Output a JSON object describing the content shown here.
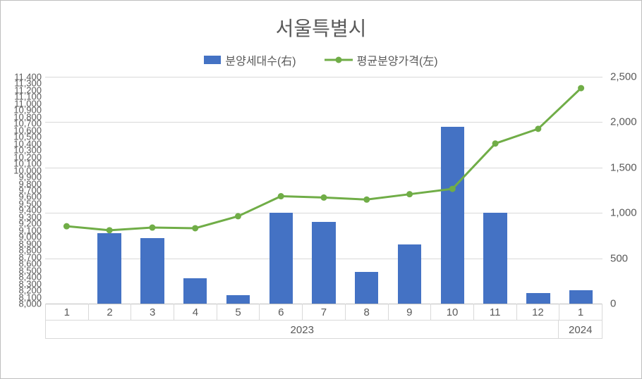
{
  "chart": {
    "title": "서울특별시",
    "title_fontsize": 28,
    "title_color": "#595959",
    "background_color": "#ffffff",
    "grid_color": "#d9d9d9",
    "axis_text_color": "#595959",
    "legend": {
      "items": [
        {
          "label": "분양세대수(右)",
          "type": "bar",
          "color": "#4472c4"
        },
        {
          "label": "평균분양가격(左)",
          "type": "line",
          "color": "#70ad47",
          "marker": "circle"
        }
      ]
    },
    "left_axis": {
      "min": 8000,
      "max": 11400,
      "step": 100,
      "fontsize": 13,
      "format": "comma"
    },
    "right_axis": {
      "min": 0,
      "max": 2500,
      "step": 500,
      "fontsize": 15,
      "format": "comma"
    },
    "x_axis": {
      "months": [
        1,
        2,
        3,
        4,
        5,
        6,
        7,
        8,
        9,
        10,
        11,
        12,
        1
      ],
      "groups": [
        {
          "label": "2023",
          "span": 12
        },
        {
          "label": "2024",
          "span": 1
        }
      ],
      "fontsize": 15
    },
    "series": {
      "bars": {
        "name": "분양세대수(右)",
        "axis": "right",
        "color": "#4472c4",
        "bar_width_frac": 0.55,
        "values": [
          0,
          780,
          720,
          280,
          90,
          1000,
          900,
          350,
          650,
          1950,
          1000,
          120,
          150
        ]
      },
      "line": {
        "name": "평균분양가격(左)",
        "axis": "left",
        "color": "#70ad47",
        "line_width": 3,
        "marker_size": 9,
        "values": [
          9160,
          9100,
          9140,
          9130,
          9310,
          9610,
          9590,
          9560,
          9640,
          9720,
          10400,
          10620,
          11230
        ]
      }
    }
  }
}
